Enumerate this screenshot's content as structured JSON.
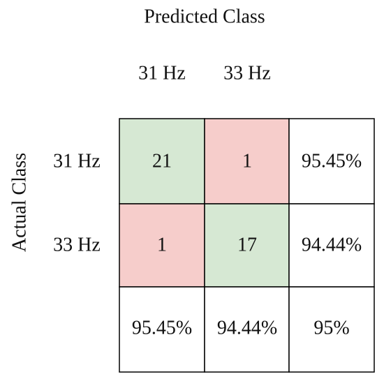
{
  "title": "Predicted Class",
  "row_axis_label": "Actual Class",
  "column_headers": [
    "31 Hz",
    "33 Hz"
  ],
  "rows": [
    {
      "label": "31 Hz",
      "cells": [
        21,
        1,
        "95.45%"
      ]
    },
    {
      "label": "33 Hz",
      "cells": [
        1,
        17,
        "94.44%"
      ]
    }
  ],
  "totals": [
    "95.45%",
    "94.44%",
    "95%"
  ]
}
